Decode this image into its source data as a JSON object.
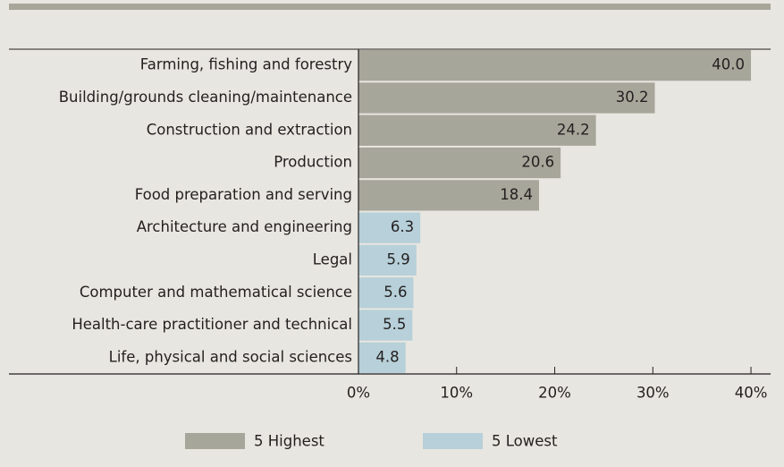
{
  "chart_data": {
    "type": "bar",
    "orientation": "horizontal",
    "categories": [
      "Farming, fishing and forestry",
      "Building/grounds cleaning/maintenance",
      "Construction and extraction",
      "Production",
      "Food preparation and serving",
      "Architecture and engineering",
      "Legal",
      "Computer and mathematical science",
      "Health-care practitioner and technical",
      "Life, physical and social sciences"
    ],
    "series": [
      {
        "name": "5 Highest",
        "color": "#a7a69a",
        "values": [
          40.0,
          30.2,
          24.2,
          20.6,
          18.4,
          null,
          null,
          null,
          null,
          null
        ],
        "value_labels": [
          "40.0",
          "30.2",
          "24.2",
          "20.6",
          "18.4",
          null,
          null,
          null,
          null,
          null
        ]
      },
      {
        "name": "5 Lowest",
        "color": "#b7d0d9",
        "values": [
          null,
          null,
          null,
          null,
          null,
          6.3,
          5.9,
          5.6,
          5.5,
          4.8
        ],
        "value_labels": [
          null,
          null,
          null,
          null,
          null,
          "6.3",
          "5.9",
          "5.6",
          "5.5",
          "4.8"
        ]
      }
    ],
    "xlim": [
      0,
      42
    ],
    "xticks": [
      {
        "value": 0,
        "label": "0%"
      },
      {
        "value": 10,
        "label": "10%"
      },
      {
        "value": 20,
        "label": "20%"
      },
      {
        "value": 30,
        "label": "30%"
      },
      {
        "value": 40,
        "label": "40%"
      }
    ],
    "legend": "bottom"
  }
}
